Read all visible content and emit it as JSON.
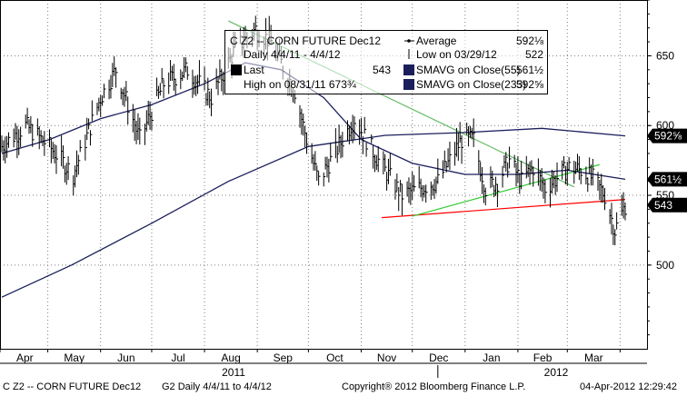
{
  "chart_data": {
    "type": "line",
    "title": "C Z2 -- CORN FUTURE Dec12",
    "legend": {
      "header": "C Z2 -- CORN FUTURE  Dec12",
      "rows": [
        {
          "label": "Daily 4/4/11 - 4/4/12",
          "value": ""
        },
        {
          "label": "Last",
          "value": "543"
        },
        {
          "label": "High on 08/31/11 673¾",
          "value": ""
        },
        {
          "label": "Average",
          "value": "592⅛"
        },
        {
          "label": "Low on 03/29/12",
          "value": "522"
        },
        {
          "label": "SMAVG on Close(55)",
          "value": "561½"
        },
        {
          "label": "SMAVG on Close(233)",
          "value": "592⅝"
        }
      ]
    },
    "x_months": [
      "Apr",
      "May",
      "Jun",
      "Jul",
      "Aug",
      "Sep",
      "Oct",
      "Nov",
      "Dec",
      "Jan",
      "Feb",
      "Mar"
    ],
    "x_years": [
      "2011",
      "2012"
    ],
    "y_ticks": [
      500,
      550,
      600,
      650
    ],
    "ylim": [
      440,
      690
    ],
    "right_labels": [
      {
        "text": "592⅝",
        "value": 592.6
      },
      {
        "text": "561½",
        "value": 561.5
      },
      {
        "text": "543",
        "value": 543
      }
    ],
    "price_series": [
      [
        "2011-04-04",
        585
      ],
      [
        "2011-04-18",
        600
      ],
      [
        "2011-05-02",
        585
      ],
      [
        "2011-05-16",
        565
      ],
      [
        "2011-06-01",
        620
      ],
      [
        "2011-06-10",
        640
      ],
      [
        "2011-06-24",
        590
      ],
      [
        "2011-07-08",
        630
      ],
      [
        "2011-07-22",
        640
      ],
      [
        "2011-08-05",
        620
      ],
      [
        "2011-08-19",
        655
      ],
      [
        "2011-08-31",
        669
      ],
      [
        "2011-09-09",
        660
      ],
      [
        "2011-09-23",
        625
      ],
      [
        "2011-09-30",
        590
      ],
      [
        "2011-10-07",
        560
      ],
      [
        "2011-10-14",
        575
      ],
      [
        "2011-10-28",
        605
      ],
      [
        "2011-11-04",
        590
      ],
      [
        "2011-11-11",
        575
      ],
      [
        "2011-11-25",
        550
      ],
      [
        "2011-12-05",
        555
      ],
      [
        "2011-12-16",
        560
      ],
      [
        "2011-12-30",
        590
      ],
      [
        "2012-01-06",
        590
      ],
      [
        "2012-01-13",
        555
      ],
      [
        "2012-01-20",
        560
      ],
      [
        "2012-01-27",
        575
      ],
      [
        "2012-02-03",
        560
      ],
      [
        "2012-02-10",
        570
      ],
      [
        "2012-02-17",
        555
      ],
      [
        "2012-03-02",
        570
      ],
      [
        "2012-03-09",
        568
      ],
      [
        "2012-03-16",
        562
      ],
      [
        "2012-03-23",
        550
      ],
      [
        "2012-03-29",
        525
      ],
      [
        "2012-04-04",
        543
      ]
    ],
    "sma55": [
      [
        "2011-04-04",
        580
      ],
      [
        "2011-05-02",
        590
      ],
      [
        "2011-06-01",
        605
      ],
      [
        "2011-07-01",
        615
      ],
      [
        "2011-08-01",
        630
      ],
      [
        "2011-08-25",
        645
      ],
      [
        "2011-09-15",
        640
      ],
      [
        "2011-10-10",
        620
      ],
      [
        "2011-11-01",
        590
      ],
      [
        "2011-12-01",
        573
      ],
      [
        "2012-01-01",
        565
      ],
      [
        "2012-02-01",
        565
      ],
      [
        "2012-03-01",
        568
      ],
      [
        "2012-04-04",
        561.5
      ]
    ],
    "sma233": [
      [
        "2011-04-04",
        477
      ],
      [
        "2011-05-15",
        500
      ],
      [
        "2011-07-01",
        530
      ],
      [
        "2011-08-15",
        560
      ],
      [
        "2011-10-01",
        585
      ],
      [
        "2011-11-15",
        593
      ],
      [
        "2012-01-01",
        595
      ],
      [
        "2012-02-15",
        598
      ],
      [
        "2012-04-04",
        592.6
      ]
    ],
    "trendlines": [
      {
        "color": "#ff0000",
        "points": [
          [
            "2011-11-13",
            534
          ],
          [
            "2012-04-04",
            547
          ]
        ]
      },
      {
        "color": "#33cc33",
        "points": [
          [
            "2011-12-01",
            535
          ],
          [
            "2012-03-20",
            572
          ]
        ]
      },
      {
        "color": "#66bb66",
        "points": [
          [
            "2011-08-15",
            675
          ],
          [
            "2012-03-05",
            556
          ]
        ]
      }
    ],
    "colors": {
      "price": "#000000",
      "sma55": "#1a1f5c",
      "sma233": "#1a1f5c",
      "grid": "#7f7f7f",
      "label_bg": "#000000",
      "label_text": "#ffffff"
    },
    "grid": true
  },
  "footer": {
    "left": "C Z2 -- CORN FUTURE  Dec12",
    "mid": "G2  Daily  4/4/11 to 4/4/12",
    "copyright": "Copyright® 2012 Bloomberg Finance L.P.",
    "timestamp": "04-Apr-2012 12:29:42"
  }
}
